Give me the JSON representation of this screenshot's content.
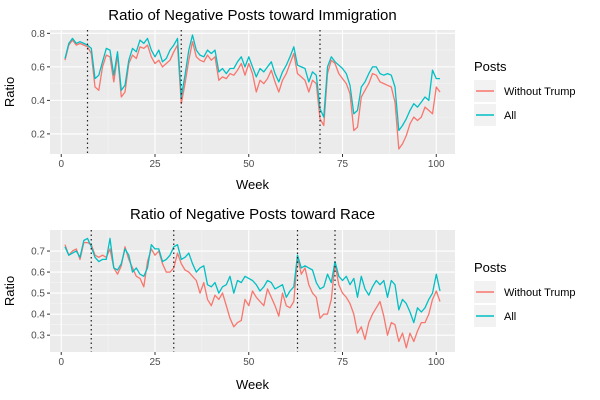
{
  "chart_data": [
    {
      "type": "line",
      "title": "Ratio of Negative Posts toward Immigration",
      "xlabel": "Week",
      "ylabel": "Ratio",
      "xlim": [
        -3,
        105
      ],
      "ylim": [
        0.08,
        0.82
      ],
      "xticks": [
        0,
        25,
        50,
        75,
        100
      ],
      "yticks": [
        0.2,
        0.4,
        0.6,
        0.8
      ],
      "ytick_labels": [
        "0.2",
        "0.4",
        "0.6",
        "0.8"
      ],
      "grid": true,
      "legend_title": "Posts",
      "legend_position": "right",
      "vlines": [
        7,
        32,
        69
      ],
      "series": [
        {
          "name": "Without Trump",
          "color": "#F8766D",
          "x": [
            1,
            2,
            3,
            4,
            5,
            6,
            7,
            8,
            9,
            10,
            11,
            12,
            13,
            14,
            15,
            16,
            17,
            18,
            19,
            20,
            21,
            22,
            23,
            24,
            25,
            26,
            27,
            28,
            29,
            30,
            31,
            32,
            33,
            34,
            35,
            36,
            37,
            38,
            39,
            40,
            41,
            42,
            43,
            44,
            45,
            46,
            47,
            48,
            49,
            50,
            51,
            52,
            53,
            54,
            55,
            56,
            57,
            58,
            59,
            60,
            61,
            62,
            63,
            64,
            65,
            66,
            67,
            68,
            69,
            70,
            71,
            72,
            73,
            74,
            75,
            76,
            77,
            78,
            79,
            80,
            81,
            82,
            83,
            84,
            85,
            86,
            87,
            88,
            89,
            90,
            91,
            92,
            93,
            94,
            95,
            96,
            97,
            98,
            99,
            100,
            101
          ],
          "values": [
            0.64,
            0.73,
            0.76,
            0.73,
            0.74,
            0.73,
            0.72,
            0.68,
            0.48,
            0.46,
            0.6,
            0.67,
            0.66,
            0.51,
            0.67,
            0.42,
            0.45,
            0.62,
            0.67,
            0.65,
            0.72,
            0.71,
            0.73,
            0.66,
            0.62,
            0.64,
            0.6,
            0.62,
            0.64,
            0.69,
            0.73,
            0.38,
            0.5,
            0.64,
            0.75,
            0.66,
            0.64,
            0.63,
            0.67,
            0.64,
            0.66,
            0.52,
            0.54,
            0.53,
            0.56,
            0.55,
            0.58,
            0.62,
            0.55,
            0.62,
            0.56,
            0.45,
            0.52,
            0.5,
            0.53,
            0.58,
            0.51,
            0.45,
            0.52,
            0.56,
            0.62,
            0.68,
            0.56,
            0.54,
            0.52,
            0.45,
            0.52,
            0.5,
            0.29,
            0.25,
            0.56,
            0.64,
            0.62,
            0.56,
            0.53,
            0.5,
            0.44,
            0.22,
            0.24,
            0.42,
            0.46,
            0.5,
            0.56,
            0.55,
            0.51,
            0.5,
            0.49,
            0.48,
            0.39,
            0.11,
            0.14,
            0.19,
            0.26,
            0.3,
            0.28,
            0.3,
            0.36,
            0.34,
            0.32,
            0.48,
            0.45
          ]
        },
        {
          "name": "All",
          "color": "#00BFC4",
          "x": [
            1,
            2,
            3,
            4,
            5,
            6,
            7,
            8,
            9,
            10,
            11,
            12,
            13,
            14,
            15,
            16,
            17,
            18,
            19,
            20,
            21,
            22,
            23,
            24,
            25,
            26,
            27,
            28,
            29,
            30,
            31,
            32,
            33,
            34,
            35,
            36,
            37,
            38,
            39,
            40,
            41,
            42,
            43,
            44,
            45,
            46,
            47,
            48,
            49,
            50,
            51,
            52,
            53,
            54,
            55,
            56,
            57,
            58,
            59,
            60,
            61,
            62,
            63,
            64,
            65,
            66,
            67,
            68,
            69,
            70,
            71,
            72,
            73,
            74,
            75,
            76,
            77,
            78,
            79,
            80,
            81,
            82,
            83,
            84,
            85,
            86,
            87,
            88,
            89,
            90,
            91,
            92,
            93,
            94,
            95,
            96,
            97,
            98,
            99,
            100,
            101
          ],
          "values": [
            0.65,
            0.74,
            0.77,
            0.74,
            0.75,
            0.74,
            0.73,
            0.71,
            0.53,
            0.55,
            0.63,
            0.71,
            0.7,
            0.55,
            0.69,
            0.46,
            0.49,
            0.64,
            0.71,
            0.69,
            0.76,
            0.74,
            0.77,
            0.7,
            0.66,
            0.7,
            0.63,
            0.65,
            0.7,
            0.73,
            0.77,
            0.42,
            0.55,
            0.7,
            0.79,
            0.7,
            0.67,
            0.66,
            0.7,
            0.68,
            0.7,
            0.57,
            0.59,
            0.56,
            0.59,
            0.59,
            0.63,
            0.66,
            0.6,
            0.66,
            0.6,
            0.54,
            0.59,
            0.57,
            0.6,
            0.63,
            0.56,
            0.51,
            0.57,
            0.61,
            0.66,
            0.72,
            0.61,
            0.6,
            0.59,
            0.51,
            0.57,
            0.55,
            0.35,
            0.3,
            0.6,
            0.66,
            0.63,
            0.61,
            0.59,
            0.56,
            0.49,
            0.32,
            0.34,
            0.48,
            0.51,
            0.56,
            0.6,
            0.6,
            0.56,
            0.55,
            0.56,
            0.55,
            0.48,
            0.22,
            0.25,
            0.29,
            0.34,
            0.38,
            0.36,
            0.39,
            0.42,
            0.4,
            0.58,
            0.53,
            0.53
          ]
        }
      ]
    },
    {
      "type": "line",
      "title": "Ratio of Negative Posts toward Race",
      "xlabel": "Week",
      "ylabel": "Ratio",
      "xlim": [
        -3,
        105
      ],
      "ylim": [
        0.22,
        0.8
      ],
      "xticks": [
        0,
        25,
        50,
        75,
        100
      ],
      "yticks": [
        0.3,
        0.4,
        0.5,
        0.6,
        0.7
      ],
      "ytick_labels": [
        "0.3",
        "0.4",
        "0.5",
        "0.6",
        "0.7"
      ],
      "grid": true,
      "legend_title": "Posts",
      "legend_position": "right",
      "vlines": [
        8,
        30,
        63,
        73
      ],
      "series": [
        {
          "name": "Without Trump",
          "color": "#F8766D",
          "x": [
            1,
            2,
            3,
            4,
            5,
            6,
            7,
            8,
            9,
            10,
            11,
            12,
            13,
            14,
            15,
            16,
            17,
            18,
            19,
            20,
            21,
            22,
            23,
            24,
            25,
            26,
            27,
            28,
            29,
            30,
            31,
            32,
            33,
            34,
            35,
            36,
            37,
            38,
            39,
            40,
            41,
            42,
            43,
            44,
            45,
            46,
            47,
            48,
            49,
            50,
            51,
            52,
            53,
            54,
            55,
            56,
            57,
            58,
            59,
            60,
            61,
            62,
            63,
            64,
            65,
            66,
            67,
            68,
            69,
            70,
            71,
            72,
            73,
            74,
            75,
            76,
            77,
            78,
            79,
            80,
            81,
            82,
            83,
            84,
            85,
            86,
            87,
            88,
            89,
            90,
            91,
            92,
            93,
            94,
            95,
            96,
            97,
            98,
            99,
            100,
            101
          ],
          "values": [
            0.73,
            0.68,
            0.7,
            0.71,
            0.66,
            0.74,
            0.74,
            0.73,
            0.68,
            0.67,
            0.68,
            0.67,
            0.71,
            0.62,
            0.59,
            0.63,
            0.72,
            0.66,
            0.62,
            0.58,
            0.57,
            0.53,
            0.65,
            0.71,
            0.68,
            0.7,
            0.64,
            0.6,
            0.6,
            0.62,
            0.69,
            0.64,
            0.61,
            0.6,
            0.58,
            0.56,
            0.5,
            0.55,
            0.47,
            0.44,
            0.49,
            0.47,
            0.5,
            0.44,
            0.38,
            0.34,
            0.36,
            0.37,
            0.47,
            0.44,
            0.51,
            0.48,
            0.46,
            0.44,
            0.52,
            0.48,
            0.44,
            0.39,
            0.5,
            0.44,
            0.43,
            0.46,
            0.67,
            0.59,
            0.62,
            0.54,
            0.5,
            0.48,
            0.38,
            0.4,
            0.4,
            0.47,
            0.64,
            0.54,
            0.5,
            0.48,
            0.45,
            0.4,
            0.31,
            0.34,
            0.28,
            0.36,
            0.4,
            0.43,
            0.46,
            0.39,
            0.3,
            0.36,
            0.35,
            0.27,
            0.31,
            0.24,
            0.31,
            0.27,
            0.32,
            0.36,
            0.36,
            0.4,
            0.47,
            0.51,
            0.46
          ]
        },
        {
          "name": "All",
          "color": "#00BFC4",
          "x": [
            1,
            2,
            3,
            4,
            5,
            6,
            7,
            8,
            9,
            10,
            11,
            12,
            13,
            14,
            15,
            16,
            17,
            18,
            19,
            20,
            21,
            22,
            23,
            24,
            25,
            26,
            27,
            28,
            29,
            30,
            31,
            32,
            33,
            34,
            35,
            36,
            37,
            38,
            39,
            40,
            41,
            42,
            43,
            44,
            45,
            46,
            47,
            48,
            49,
            50,
            51,
            52,
            53,
            54,
            55,
            56,
            57,
            58,
            59,
            60,
            61,
            62,
            63,
            64,
            65,
            66,
            67,
            68,
            69,
            70,
            71,
            72,
            73,
            74,
            75,
            76,
            77,
            78,
            79,
            80,
            81,
            82,
            83,
            84,
            85,
            86,
            87,
            88,
            89,
            90,
            91,
            92,
            93,
            94,
            95,
            96,
            97,
            98,
            99,
            100,
            101
          ],
          "values": [
            0.72,
            0.68,
            0.69,
            0.7,
            0.67,
            0.75,
            0.76,
            0.72,
            0.67,
            0.65,
            0.66,
            0.66,
            0.76,
            0.62,
            0.61,
            0.64,
            0.71,
            0.68,
            0.6,
            0.62,
            0.59,
            0.58,
            0.62,
            0.73,
            0.71,
            0.71,
            0.65,
            0.66,
            0.68,
            0.72,
            0.73,
            0.66,
            0.67,
            0.69,
            0.64,
            0.6,
            0.62,
            0.63,
            0.54,
            0.53,
            0.55,
            0.5,
            0.53,
            0.54,
            0.58,
            0.5,
            0.56,
            0.55,
            0.58,
            0.57,
            0.56,
            0.54,
            0.51,
            0.53,
            0.56,
            0.55,
            0.52,
            0.53,
            0.54,
            0.48,
            0.51,
            0.53,
            0.68,
            0.62,
            0.63,
            0.62,
            0.61,
            0.55,
            0.52,
            0.53,
            0.59,
            0.55,
            0.65,
            0.58,
            0.56,
            0.58,
            0.54,
            0.57,
            0.48,
            0.58,
            0.52,
            0.49,
            0.53,
            0.56,
            0.54,
            0.56,
            0.48,
            0.56,
            0.54,
            0.42,
            0.47,
            0.45,
            0.41,
            0.36,
            0.43,
            0.41,
            0.43,
            0.47,
            0.5,
            0.59,
            0.51
          ]
        }
      ]
    }
  ]
}
